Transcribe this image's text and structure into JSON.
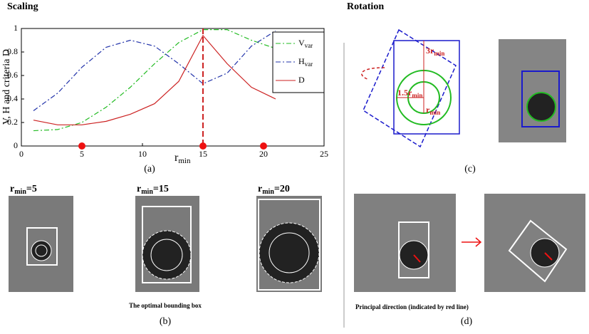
{
  "headings": {
    "scaling": "Scaling",
    "rotation": "Rotation"
  },
  "chart_data": {
    "type": "line",
    "caption": "(a)",
    "y_label": "V, H and criteria D",
    "x_label": {
      "base": "r",
      "sub": "min"
    },
    "xlim": [
      0,
      25
    ],
    "xticks": [
      0,
      5,
      10,
      15,
      20,
      25
    ],
    "ylim": [
      0,
      1
    ],
    "yticks": [
      0,
      0.2,
      0.4,
      0.6,
      0.8,
      1
    ],
    "x": [
      1,
      3,
      5,
      7,
      9,
      11,
      13,
      15,
      17,
      19,
      21
    ],
    "series": [
      {
        "name": "V",
        "subscript": "var",
        "color": "#22bb22",
        "dash": "dashdot",
        "values": [
          0.13,
          0.14,
          0.2,
          0.33,
          0.5,
          0.7,
          0.88,
          0.99,
          0.99,
          0.9,
          0.83
        ]
      },
      {
        "name": "H",
        "subscript": "var",
        "color": "#2233aa",
        "dash": "dashdot",
        "values": [
          0.3,
          0.45,
          0.67,
          0.84,
          0.9,
          0.85,
          0.7,
          0.53,
          0.62,
          0.85,
          0.98
        ]
      },
      {
        "name": "D",
        "color": "#cc2222",
        "dash": "solid",
        "values": [
          0.22,
          0.18,
          0.18,
          0.21,
          0.27,
          0.36,
          0.55,
          0.94,
          0.7,
          0.5,
          0.4
        ]
      }
    ],
    "markers": {
      "color": "#ee1111",
      "x": [
        5,
        15,
        20
      ],
      "values": [
        0,
        0,
        0
      ]
    },
    "vline": {
      "x": 15,
      "color": "#cc2222"
    }
  },
  "panel_b": {
    "caption": "(b)",
    "note": "The optimal bounding box",
    "labels": [
      {
        "base": "r",
        "sub": "min",
        "rest": "=5"
      },
      {
        "base": "r",
        "sub": "min",
        "rest": "=15"
      },
      {
        "base": "r",
        "sub": "min",
        "rest": "=20"
      }
    ]
  },
  "panel_c": {
    "caption": "(c)",
    "labels": [
      {
        "base": "3r",
        "sub": "min"
      },
      {
        "base": "1.5r",
        "sub": "min"
      },
      {
        "base": "r",
        "sub": "min"
      }
    ]
  },
  "panel_d": {
    "caption": "(d)",
    "note": "Principal direction (indicated by red line)"
  }
}
